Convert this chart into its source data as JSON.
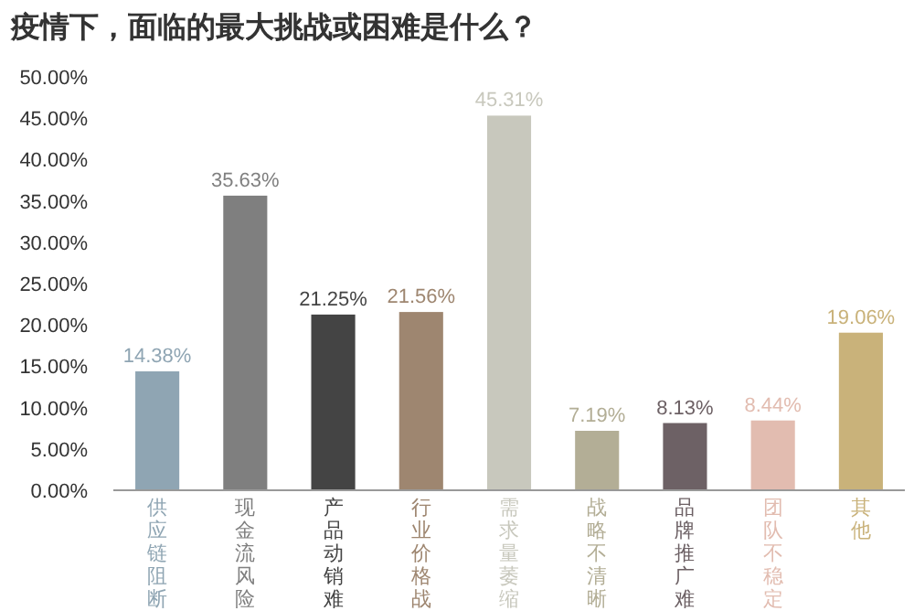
{
  "chart_data": {
    "type": "bar",
    "title": "疫情下，面临的最大挑战或困难是什么？",
    "categories": [
      "供应链阻断",
      "现金流风险",
      "产品动销难",
      "行业价格战",
      "需求量萎缩",
      "战略不清晰",
      "品牌推广难",
      "团队不稳定",
      "其他"
    ],
    "values": [
      14.38,
      35.63,
      21.25,
      21.56,
      45.31,
      7.19,
      8.13,
      8.44,
      19.06
    ],
    "value_labels": [
      "14.38%",
      "35.63%",
      "21.25%",
      "21.56%",
      "45.31%",
      "7.19%",
      "8.13%",
      "8.44%",
      "19.06%"
    ],
    "colors": [
      "#8fa5b3",
      "#7f7f7f",
      "#444444",
      "#9e8670",
      "#c8c8bd",
      "#b3ae96",
      "#6d6165",
      "#e2bcb0",
      "#c9b27a"
    ],
    "ylim": [
      0,
      50
    ],
    "yticks": [
      {
        "value": 0,
        "label": "0.00%"
      },
      {
        "value": 5,
        "label": "5.00%"
      },
      {
        "value": 10,
        "label": "10.00%"
      },
      {
        "value": 15,
        "label": "15.00%"
      },
      {
        "value": 20,
        "label": "20.00%"
      },
      {
        "value": 25,
        "label": "25.00%"
      },
      {
        "value": 30,
        "label": "30.00%"
      },
      {
        "value": 35,
        "label": "35.00%"
      },
      {
        "value": 40,
        "label": "40.00%"
      },
      {
        "value": 45,
        "label": "45.00%"
      },
      {
        "value": 50,
        "label": "50.00%"
      }
    ]
  }
}
